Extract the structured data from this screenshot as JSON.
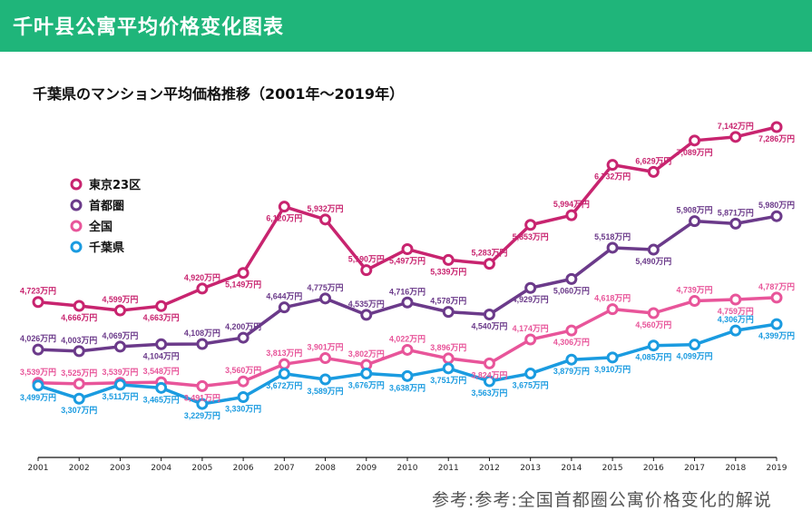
{
  "header": {
    "title": "千叶县公寓平均价格变化图表"
  },
  "caption": "参考:参考:全国首都圈公寓价格变化的解说",
  "chart_data": {
    "type": "line",
    "title": "千葉県のマンション平均価格推移（2001年〜2019年）",
    "unit": "万円",
    "x": [
      "2001",
      "2002",
      "2003",
      "2004",
      "2005",
      "2006",
      "2007",
      "2008",
      "2009",
      "2010",
      "2011",
      "2012",
      "2013",
      "2014",
      "2015",
      "2016",
      "2017",
      "2018",
      "2019"
    ],
    "legend_position": "left",
    "grid": false,
    "series": [
      {
        "name": "東京23区",
        "color": "#c8246f",
        "values": [
          4723,
          4666,
          4599,
          4663,
          4920,
          5149,
          6120,
          5932,
          5190,
          5497,
          5339,
          5283,
          5853,
          5994,
          6732,
          6629,
          7089,
          7142,
          7286
        ]
      },
      {
        "name": "首都圏",
        "color": "#6b3a8a",
        "values": [
          4026,
          4003,
          4069,
          4104,
          4108,
          4200,
          4644,
          4775,
          4535,
          4716,
          4578,
          4540,
          4929,
          5060,
          5518,
          5490,
          5908,
          5871,
          5980
        ]
      },
      {
        "name": "全国",
        "color": "#e8559a",
        "values": [
          3539,
          3525,
          3539,
          3548,
          3491,
          3560,
          3813,
          3901,
          3802,
          4022,
          3896,
          3824,
          4174,
          4306,
          4618,
          4560,
          4739,
          4759,
          4787
        ]
      },
      {
        "name": "千葉県",
        "color": "#1a9be0",
        "values": [
          3499,
          3307,
          3511,
          3465,
          3229,
          3330,
          3672,
          3589,
          3676,
          3638,
          3751,
          3563,
          3675,
          3879,
          3910,
          4085,
          4099,
          4306,
          4399
        ]
      }
    ]
  }
}
